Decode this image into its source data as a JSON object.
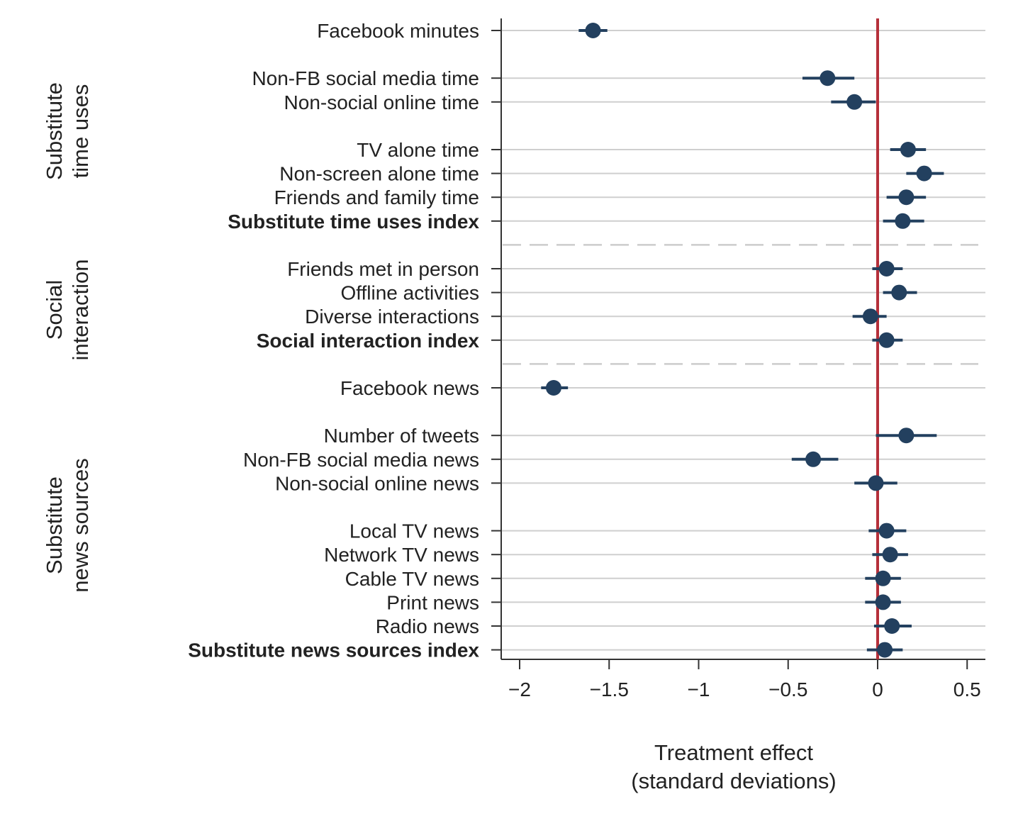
{
  "chart_data": {
    "type": "scatter",
    "subtype": "coefficient-plot",
    "orientation": "horizontal",
    "xlabel": [
      "Treatment effect",
      "(standard deviations)"
    ],
    "xlim": [
      -2.1,
      0.6
    ],
    "xticks": [
      -2,
      -1.5,
      -1,
      -0.5,
      0,
      0.5
    ],
    "xtick_labels": [
      "−2",
      "−1.5",
      "−1",
      "−0.5",
      "0",
      "0.5"
    ],
    "reference_line": {
      "x": 0,
      "color": "#b5303a"
    },
    "grid": "horizontal",
    "marker_color": "#23405f",
    "groups": [
      {
        "label": [
          "Substitute",
          "time uses"
        ]
      },
      {
        "label": [
          "Social",
          "interaction"
        ]
      },
      {
        "label": [
          "Substitute",
          "news sources"
        ]
      }
    ],
    "rows": [
      {
        "label": "Facebook minutes",
        "bold": false,
        "estimate": -1.59,
        "ci": [
          -1.67,
          -1.51
        ],
        "slot": 0,
        "group": 0
      },
      {
        "label": "Non-FB social media time",
        "bold": false,
        "estimate": -0.28,
        "ci": [
          -0.42,
          -0.13
        ],
        "slot": 2,
        "group": 0
      },
      {
        "label": "Non-social online time",
        "bold": false,
        "estimate": -0.13,
        "ci": [
          -0.26,
          -0.01
        ],
        "slot": 3,
        "group": 0
      },
      {
        "label": "TV alone time",
        "bold": false,
        "estimate": 0.17,
        "ci": [
          0.07,
          0.27
        ],
        "slot": 5,
        "group": 0
      },
      {
        "label": "Non-screen alone time",
        "bold": false,
        "estimate": 0.26,
        "ci": [
          0.16,
          0.37
        ],
        "slot": 6,
        "group": 0
      },
      {
        "label": "Friends and family time",
        "bold": false,
        "estimate": 0.16,
        "ci": [
          0.05,
          0.27
        ],
        "slot": 7,
        "group": 0
      },
      {
        "label": "Substitute time uses index",
        "bold": true,
        "estimate": 0.14,
        "ci": [
          0.03,
          0.26
        ],
        "slot": 8,
        "group": 0
      },
      {
        "label": "Friends met in person",
        "bold": false,
        "estimate": 0.05,
        "ci": [
          -0.03,
          0.14
        ],
        "slot": 10,
        "group": 1
      },
      {
        "label": "Offline activities",
        "bold": false,
        "estimate": 0.12,
        "ci": [
          0.03,
          0.22
        ],
        "slot": 11,
        "group": 1
      },
      {
        "label": "Diverse interactions",
        "bold": false,
        "estimate": -0.04,
        "ci": [
          -0.14,
          0.05
        ],
        "slot": 12,
        "group": 1
      },
      {
        "label": "Social interaction index",
        "bold": true,
        "estimate": 0.05,
        "ci": [
          -0.03,
          0.14
        ],
        "slot": 13,
        "group": 1
      },
      {
        "label": "Facebook news",
        "bold": false,
        "estimate": -1.81,
        "ci": [
          -1.88,
          -1.73
        ],
        "slot": 15,
        "group": 2
      },
      {
        "label": "Number of tweets",
        "bold": false,
        "estimate": 0.16,
        "ci": [
          -0.01,
          0.33
        ],
        "slot": 17,
        "group": 2
      },
      {
        "label": "Non-FB social media news",
        "bold": false,
        "estimate": -0.36,
        "ci": [
          -0.48,
          -0.22
        ],
        "slot": 18,
        "group": 2
      },
      {
        "label": "Non-social online news",
        "bold": false,
        "estimate": -0.01,
        "ci": [
          -0.13,
          0.11
        ],
        "slot": 19,
        "group": 2
      },
      {
        "label": "Local TV news",
        "bold": false,
        "estimate": 0.05,
        "ci": [
          -0.05,
          0.16
        ],
        "slot": 21,
        "group": 2
      },
      {
        "label": "Network TV news",
        "bold": false,
        "estimate": 0.07,
        "ci": [
          -0.03,
          0.17
        ],
        "slot": 22,
        "group": 2
      },
      {
        "label": "Cable TV news",
        "bold": false,
        "estimate": 0.03,
        "ci": [
          -0.07,
          0.13
        ],
        "slot": 23,
        "group": 2
      },
      {
        "label": "Print news",
        "bold": false,
        "estimate": 0.03,
        "ci": [
          -0.07,
          0.13
        ],
        "slot": 24,
        "group": 2
      },
      {
        "label": "Radio news",
        "bold": false,
        "estimate": 0.08,
        "ci": [
          -0.02,
          0.19
        ],
        "slot": 25,
        "group": 2
      },
      {
        "label": "Substitute news sources index",
        "bold": true,
        "estimate": 0.04,
        "ci": [
          -0.06,
          0.14
        ],
        "slot": 26,
        "group": 2
      }
    ],
    "separators_after_slots": [
      8,
      13
    ]
  }
}
